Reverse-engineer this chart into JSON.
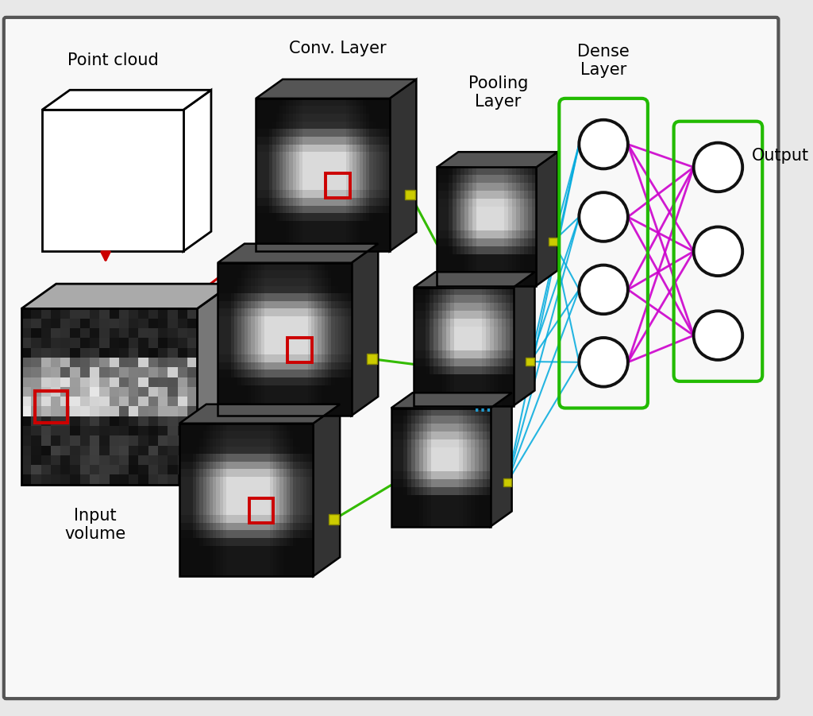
{
  "bg_color": "#e8e8e8",
  "inner_bg": "#f5f5f5",
  "labels": {
    "point_cloud": "Point cloud",
    "conv_layer": "Conv. Layer",
    "pooling_layer": "Pooling\nLayer",
    "dense_layer": "Dense\nLayer",
    "output": "Output",
    "input_volume": "Input\nvolume"
  },
  "label_fontsize": 15,
  "red_color": "#cc0000",
  "green_color": "#33bb00",
  "blue_color": "#00aadd",
  "magenta_color": "#cc00cc",
  "yellow_sq_color": "#cccc00",
  "dense_box_color": "#22bb00",
  "output_box_color": "#22bb00",
  "dots_color": "#2299cc"
}
